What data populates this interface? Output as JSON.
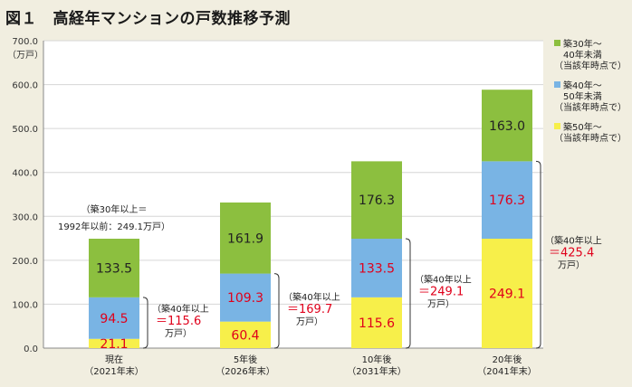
{
  "title": "図１　高経年マンションの戸数推移予測",
  "chart_data": {
    "type": "bar",
    "stacked": true,
    "ylabel": "（万戸）",
    "ylim": [
      0,
      700
    ],
    "yticks": [
      "0.0",
      "100.0",
      "200.0",
      "300.0",
      "400.0",
      "500.0",
      "600.0",
      "700.0"
    ],
    "categories": [
      [
        "現在",
        "（2021年末）"
      ],
      [
        "5年後",
        "（2026年末）"
      ],
      [
        "10年後",
        "（2031年末）"
      ],
      [
        "20年後",
        "（2041年末）"
      ]
    ],
    "series": [
      {
        "name": "築50年～（当該年時点で）",
        "color": "#f7ef4a",
        "label_color": "#e0001b",
        "values": [
          21.1,
          60.4,
          115.6,
          249.1
        ]
      },
      {
        "name": "築40年～50年未満（当該年時点で）",
        "color": "#79b4e4",
        "label_color": "#e0001b",
        "values": [
          94.5,
          109.3,
          133.5,
          176.3
        ]
      },
      {
        "name": "築30年～40年未満（当該年時点で）",
        "color": "#8cbf3f",
        "label_color": "#222222",
        "values": [
          133.5,
          161.9,
          176.3,
          163.0
        ]
      }
    ],
    "legend_position": "right",
    "legend": [
      {
        "lines": [
          "築30年～",
          "40年未満",
          "（当該年時点で）"
        ],
        "color": "#8cbf3f"
      },
      {
        "lines": [
          "築40年～",
          "50年未満",
          "（当該年時点で）"
        ],
        "color": "#79b4e4"
      },
      {
        "lines": [
          "築50年～",
          "（当該年時点で）"
        ],
        "color": "#f7ef4a"
      }
    ],
    "top_annotation": [
      "（築30年以上＝",
      "1992年以前：249.1万戸）"
    ],
    "bracket_notes": [
      {
        "label": "（築40年以上",
        "value": "＝115.6",
        "unit": "万戸）"
      },
      {
        "label": "（築40年以上",
        "value": "＝169.7",
        "unit": "万戸）"
      },
      {
        "label": "（築40年以上",
        "value": "＝249.1",
        "unit": "万戸）"
      },
      {
        "label": "（築40年以上",
        "value": "＝425.4",
        "unit": "万戸）"
      }
    ]
  }
}
